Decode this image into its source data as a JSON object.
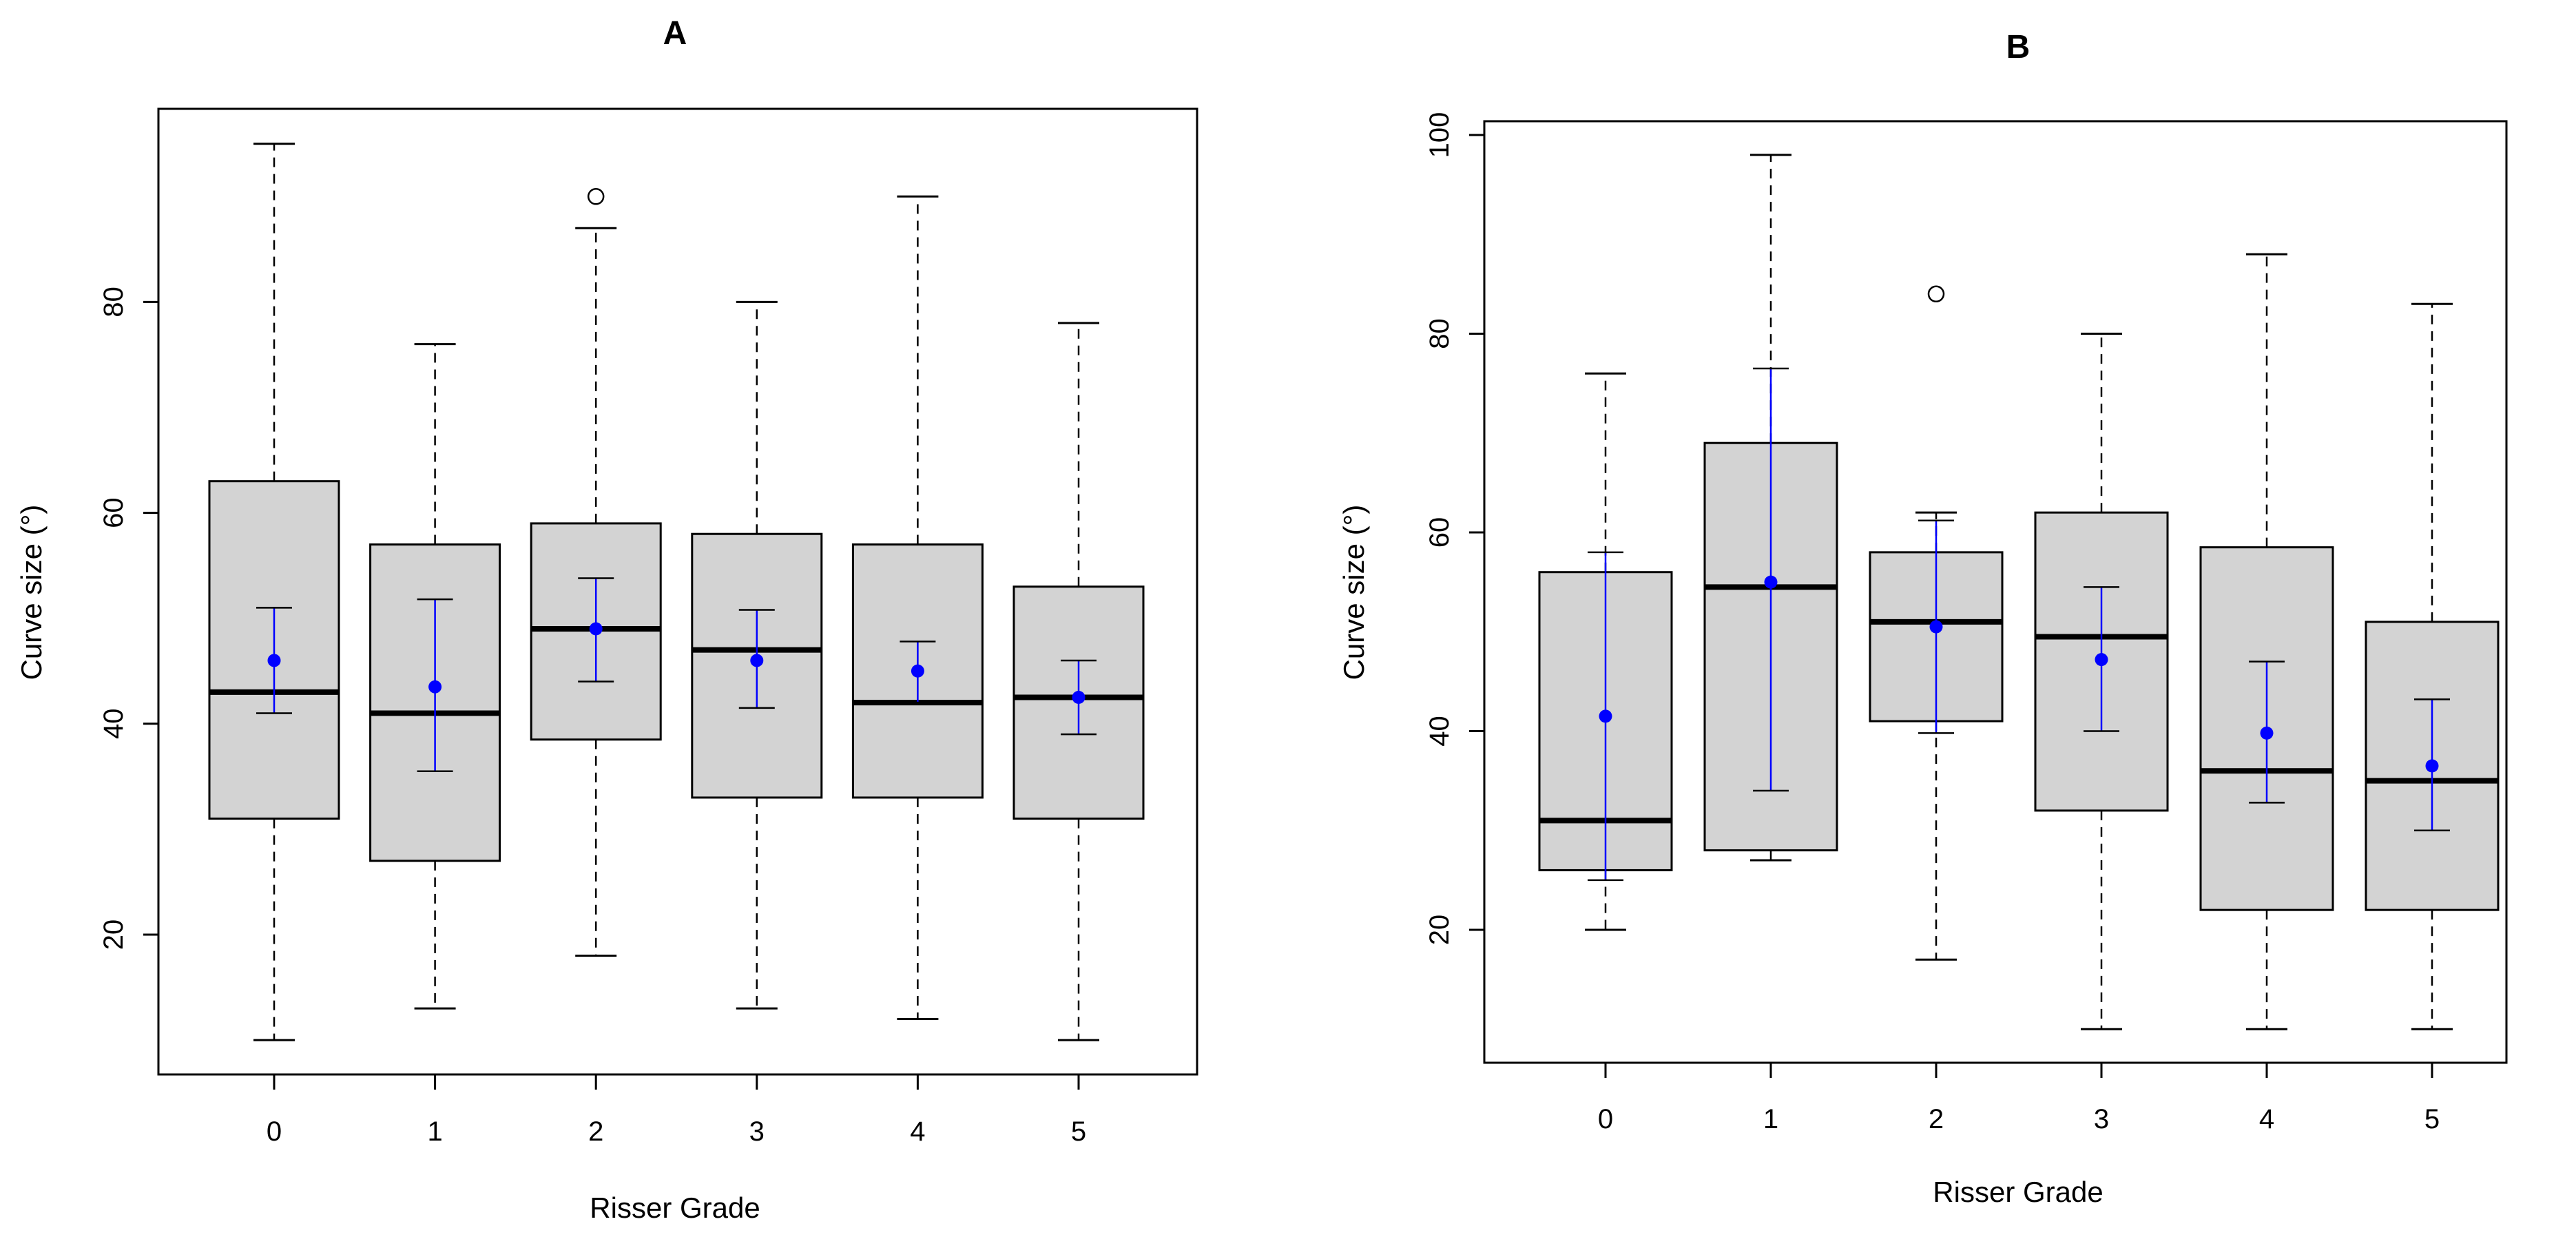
{
  "chart_data": [
    {
      "type": "boxplot",
      "title": "A",
      "xlabel": "Risser Grade",
      "ylabel": "Curve size (°)",
      "categories": [
        "0",
        "1",
        "2",
        "3",
        "4",
        "5"
      ],
      "yticks": [
        20,
        40,
        60,
        80
      ],
      "ylim": [
        5,
        97
      ],
      "grid": false,
      "boxes": [
        {
          "category": "0",
          "whisker_low": 10,
          "q1": 31,
          "median": 43,
          "q3": 63,
          "whisker_high": 95,
          "outliers": [],
          "mean": 46,
          "ci_low": 41,
          "ci_high": 51
        },
        {
          "category": "1",
          "whisker_low": 13,
          "q1": 27,
          "median": 41,
          "q3": 57,
          "whisker_high": 76,
          "outliers": [],
          "mean": 43.5,
          "ci_low": 35.5,
          "ci_high": 51.8
        },
        {
          "category": "2",
          "whisker_low": 18,
          "q1": 38.5,
          "median": 49,
          "q3": 59,
          "whisker_high": 87,
          "outliers": [
            90
          ],
          "mean": 49,
          "ci_low": 44,
          "ci_high": 53.8
        },
        {
          "category": "3",
          "whisker_low": 13,
          "q1": 33,
          "median": 47,
          "q3": 58,
          "whisker_high": 80,
          "outliers": [],
          "mean": 46,
          "ci_low": 41.5,
          "ci_high": 50.8
        },
        {
          "category": "4",
          "whisker_low": 12,
          "q1": 33,
          "median": 42,
          "q3": 57,
          "whisker_high": 90,
          "outliers": [],
          "mean": 45,
          "ci_low": 42,
          "ci_high": 47.8
        },
        {
          "category": "5",
          "whisker_low": 10,
          "q1": 31,
          "median": 42.5,
          "q3": 53,
          "whisker_high": 78,
          "outliers": [],
          "mean": 42.5,
          "ci_low": 39,
          "ci_high": 46
        }
      ]
    },
    {
      "type": "boxplot",
      "title": "B",
      "xlabel": "Risser Grade",
      "ylabel": "Curve size (°)",
      "categories": [
        "0",
        "1",
        "2",
        "3",
        "4",
        "5"
      ],
      "yticks": [
        20,
        40,
        60,
        80,
        100
      ],
      "ylim": [
        7,
        102
      ],
      "grid": false,
      "boxes": [
        {
          "category": "0",
          "whisker_low": 20,
          "q1": 26,
          "median": 31,
          "q3": 56,
          "whisker_high": 76,
          "outliers": [],
          "mean": 41.5,
          "ci_low": 25,
          "ci_high": 58
        },
        {
          "category": "1",
          "whisker_low": 27,
          "q1": 28,
          "median": 54.5,
          "q3": 69,
          "whisker_high": 98,
          "outliers": [],
          "mean": 55,
          "ci_low": 34,
          "ci_high": 76.5
        },
        {
          "category": "2",
          "whisker_low": 17,
          "q1": 41,
          "median": 51,
          "q3": 58,
          "whisker_high": 62,
          "outliers": [
            84
          ],
          "mean": 50.5,
          "ci_low": 39.8,
          "ci_high": 61.2
        },
        {
          "category": "3",
          "whisker_low": 10,
          "q1": 32,
          "median": 49.5,
          "q3": 62,
          "whisker_high": 80,
          "outliers": [],
          "mean": 47.2,
          "ci_low": 40,
          "ci_high": 54.5
        },
        {
          "category": "4",
          "whisker_low": 10,
          "q1": 22,
          "median": 36,
          "q3": 58.5,
          "whisker_high": 88,
          "outliers": [],
          "mean": 39.8,
          "ci_low": 32.8,
          "ci_high": 47
        },
        {
          "category": "5",
          "whisker_low": 10,
          "q1": 22,
          "median": 35,
          "q3": 51,
          "whisker_high": 83,
          "outliers": [],
          "mean": 36.5,
          "ci_low": 30,
          "ci_high": 43.2
        }
      ]
    }
  ],
  "colors": {
    "box_fill": "#d3d3d3",
    "box_stroke": "#000000",
    "mean_point": "#0000ff",
    "ci_line": "#0000ff",
    "outlier_fill": "#ffffff"
  }
}
